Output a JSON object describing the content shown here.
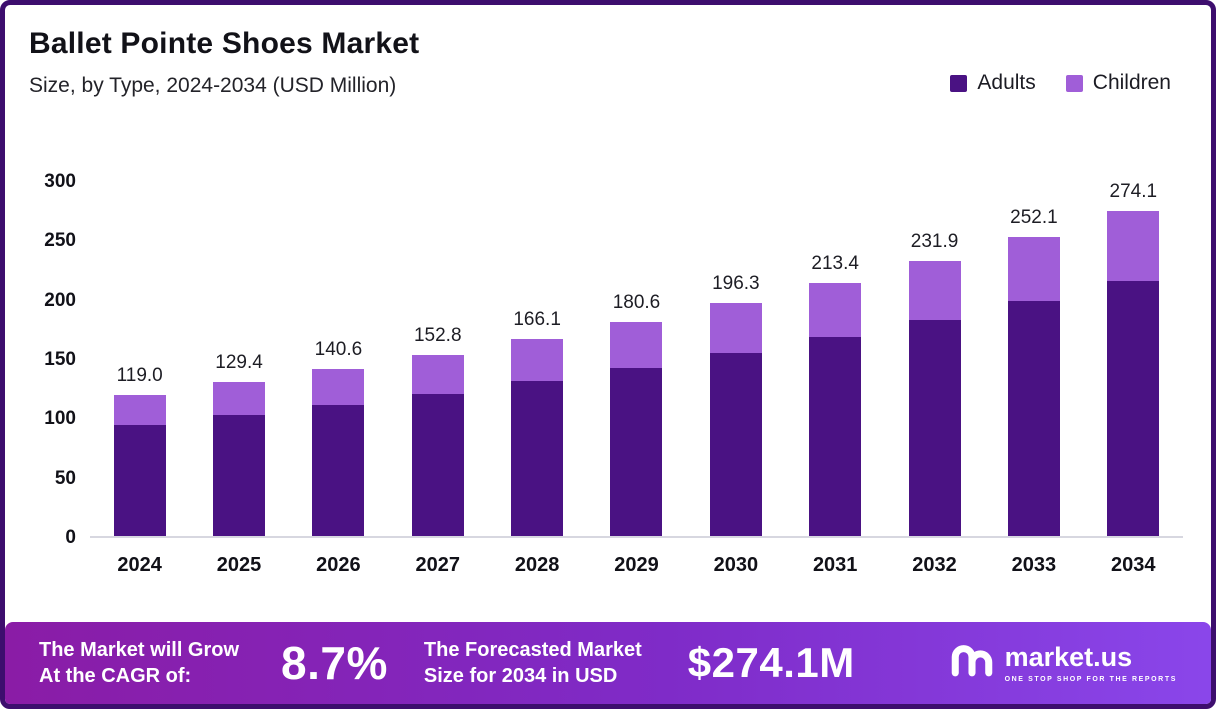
{
  "header": {
    "title": "Ballet Pointe Shoes Market",
    "subtitle": "Size, by Type, 2024-2034 (USD Million)"
  },
  "chart_data": {
    "type": "bar",
    "variant": "stacked",
    "title": "Ballet Pointe Shoes Market",
    "subtitle": "Size, by Type, 2024-2034 (USD Million)",
    "xlabel": "",
    "ylabel": "",
    "categories": [
      "2024",
      "2025",
      "2026",
      "2027",
      "2028",
      "2029",
      "2030",
      "2031",
      "2032",
      "2033",
      "2034"
    ],
    "series": [
      {
        "name": "Adults",
        "color": "#4a1283",
        "values": [
          93.4,
          101.6,
          110.4,
          120.0,
          130.4,
          141.8,
          154.1,
          167.5,
          182.0,
          197.9,
          215.2
        ]
      },
      {
        "name": "Children",
        "color": "#a05ed8",
        "values": [
          25.6,
          27.8,
          30.2,
          32.8,
          35.7,
          38.8,
          42.2,
          45.9,
          49.9,
          54.2,
          58.9
        ]
      }
    ],
    "totals": [
      119.0,
      129.4,
      140.6,
      152.8,
      166.1,
      180.6,
      196.3,
      213.4,
      231.9,
      252.1,
      274.1
    ],
    "total_labels": [
      "119.0",
      "129.4",
      "140.6",
      "152.8",
      "166.1",
      "180.6",
      "196.3",
      "213.4",
      "231.9",
      "252.1",
      "274.1"
    ],
    "ylim": [
      0,
      300
    ],
    "yticks": [
      0,
      50,
      100,
      150,
      200,
      250,
      300
    ],
    "grid": false,
    "legend_position": "top-right"
  },
  "footer": {
    "cagr_label_line1": "The Market will Grow",
    "cagr_label_line2": "At the CAGR of:",
    "cagr_value": "8.7%",
    "forecast_label_line1": "The Forecasted Market",
    "forecast_label_line2": "Size for 2034 in USD",
    "forecast_value": "$274.1M",
    "brand_name": "market.us",
    "brand_tagline": "ONE STOP SHOP FOR THE REPORTS"
  }
}
